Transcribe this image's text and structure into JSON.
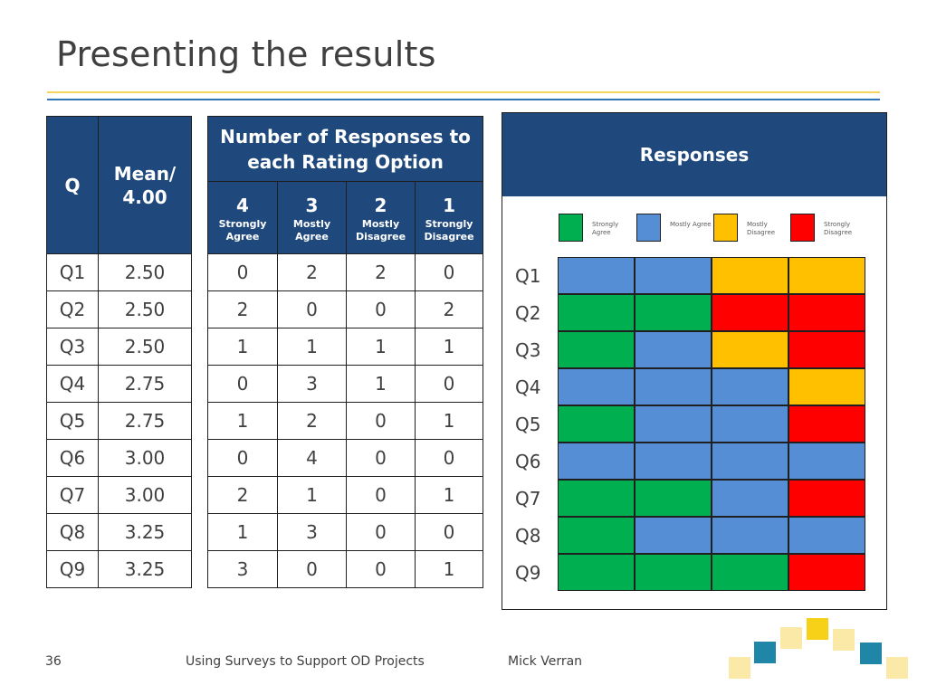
{
  "slide": {
    "title": "Presenting the results",
    "page_number": "36",
    "footer_title": "Using Surveys to Support OD Projects",
    "author": "Mick Verran"
  },
  "left_table": {
    "col_q": "Q",
    "col_mean": "Mean/ 4.00",
    "rows": [
      {
        "q": "Q1",
        "mean": "2.50"
      },
      {
        "q": "Q2",
        "mean": "2.50"
      },
      {
        "q": "Q3",
        "mean": "2.50"
      },
      {
        "q": "Q4",
        "mean": "2.75"
      },
      {
        "q": "Q5",
        "mean": "2.75"
      },
      {
        "q": "Q6",
        "mean": "3.00"
      },
      {
        "q": "Q7",
        "mean": "3.00"
      },
      {
        "q": "Q8",
        "mean": "3.25"
      },
      {
        "q": "Q9",
        "mean": "3.25"
      }
    ]
  },
  "mid_table": {
    "title": "Number of Responses to each Rating Option",
    "options": [
      {
        "num": "4",
        "label": "Strongly Agree"
      },
      {
        "num": "3",
        "label": "Mostly Agree"
      },
      {
        "num": "2",
        "label": "Mostly Disagree"
      },
      {
        "num": "1",
        "label": "Strongly Disagree"
      }
    ],
    "rows": [
      [
        "0",
        "2",
        "2",
        "0"
      ],
      [
        "2",
        "0",
        "0",
        "2"
      ],
      [
        "1",
        "1",
        "1",
        "1"
      ],
      [
        "0",
        "3",
        "1",
        "0"
      ],
      [
        "1",
        "2",
        "0",
        "1"
      ],
      [
        "0",
        "4",
        "0",
        "0"
      ],
      [
        "2",
        "1",
        "0",
        "1"
      ],
      [
        "1",
        "3",
        "0",
        "0"
      ],
      [
        "3",
        "0",
        "0",
        "1"
      ]
    ]
  },
  "responses": {
    "title": "Responses",
    "legend": [
      {
        "label": "Strongly Agree",
        "color": "#00b050"
      },
      {
        "label": "Mostly Agree",
        "color": "#558ed5"
      },
      {
        "label": "Mostly Disagree",
        "color": "#ffc000"
      },
      {
        "label": "Strongly Disagree",
        "color": "#ff0000"
      }
    ],
    "rows": [
      {
        "q": "Q1",
        "cells": [
          "#558ed5",
          "#558ed5",
          "#ffc000",
          "#ffc000"
        ]
      },
      {
        "q": "Q2",
        "cells": [
          "#00b050",
          "#00b050",
          "#ff0000",
          "#ff0000"
        ]
      },
      {
        "q": "Q3",
        "cells": [
          "#00b050",
          "#558ed5",
          "#ffc000",
          "#ff0000"
        ]
      },
      {
        "q": "Q4",
        "cells": [
          "#558ed5",
          "#558ed5",
          "#558ed5",
          "#ffc000"
        ]
      },
      {
        "q": "Q5",
        "cells": [
          "#00b050",
          "#558ed5",
          "#558ed5",
          "#ff0000"
        ]
      },
      {
        "q": "Q6",
        "cells": [
          "#558ed5",
          "#558ed5",
          "#558ed5",
          "#558ed5"
        ]
      },
      {
        "q": "Q7",
        "cells": [
          "#00b050",
          "#00b050",
          "#558ed5",
          "#ff0000"
        ]
      },
      {
        "q": "Q8",
        "cells": [
          "#00b050",
          "#558ed5",
          "#558ed5",
          "#558ed5"
        ]
      },
      {
        "q": "Q9",
        "cells": [
          "#00b050",
          "#00b050",
          "#00b050",
          "#ff0000"
        ]
      }
    ]
  },
  "decoration": {
    "colors": {
      "teal": "#1f86a8",
      "pale_yellow": "#fbe9a8",
      "yellow": "#f7d117"
    }
  }
}
